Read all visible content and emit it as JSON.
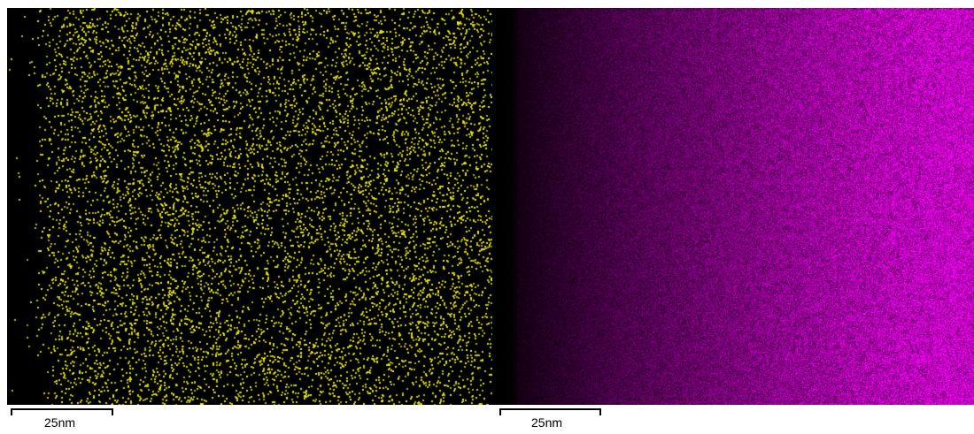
{
  "panels": [
    {
      "name": "left-element-map",
      "dot_color": "#f0f000",
      "background": "#000000",
      "scale_bar_label": "25nm"
    },
    {
      "name": "right-element-map",
      "dot_color": "#ff00ff",
      "background": "#000000",
      "scale_bar_label": "25nm"
    }
  ]
}
